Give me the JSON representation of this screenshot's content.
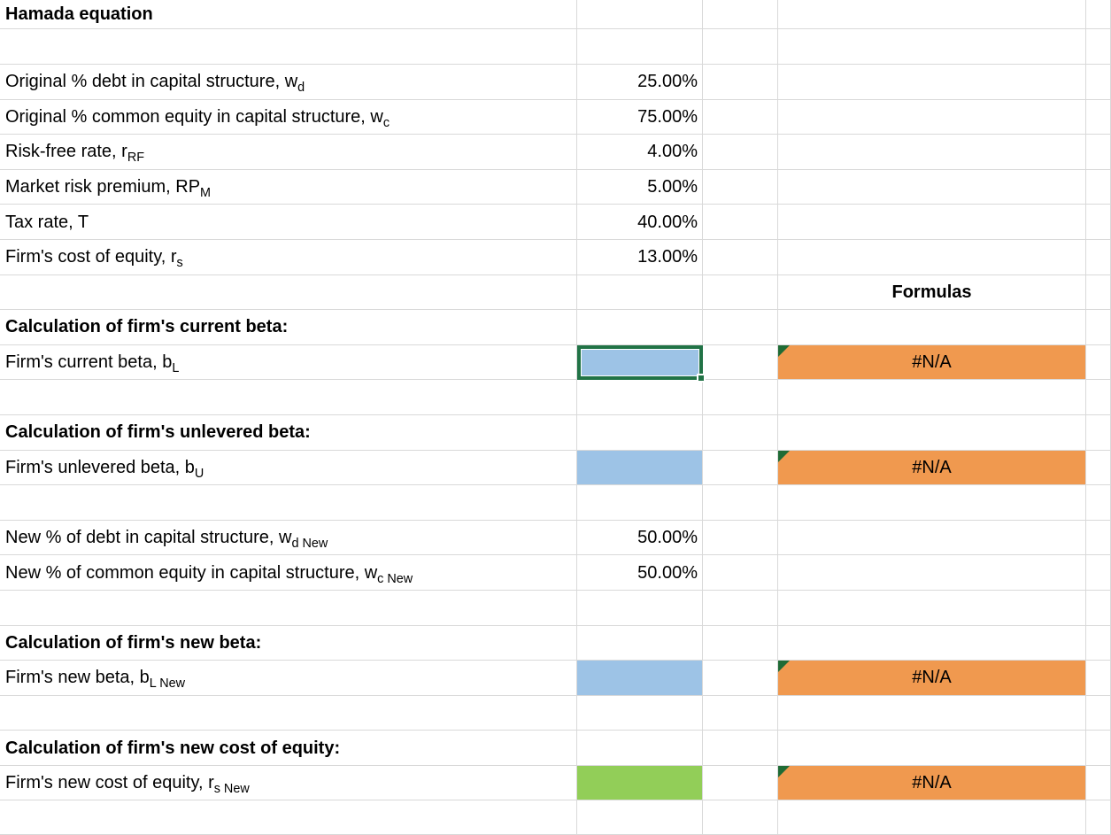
{
  "sheet_title": "Hamada equation",
  "rows": {
    "title": "Hamada equation",
    "original_debt": {
      "label": "Original % debt in capital structure, w",
      "sub": "d",
      "value": "25.00%"
    },
    "original_equity": {
      "label": "Original % common equity in capital structure, w",
      "sub": "c",
      "value": "75.00%"
    },
    "risk_free": {
      "label": "Risk-free rate, r",
      "sub": "RF",
      "value": "4.00%"
    },
    "market_premium": {
      "label": "Market risk premium, RP",
      "sub": "M",
      "value": "5.00%"
    },
    "tax_rate": {
      "label": "Tax rate, T",
      "sub": "",
      "value": "40.00%"
    },
    "cost_equity": {
      "label": "Firm's cost of equity, r",
      "sub": "s",
      "value": "13.00%"
    },
    "formulas_header": "Formulas",
    "section_current": "Calculation of firm's current beta:",
    "current_beta": {
      "label": "Firm's current beta, b",
      "sub": "L",
      "formula_result": "#N/A"
    },
    "section_unlevered": "Calculation of firm's unlevered beta:",
    "unlevered_beta": {
      "label": "Firm's unlevered beta, b",
      "sub": "U",
      "formula_result": "#N/A"
    },
    "new_debt": {
      "label": "New % of debt in capital structure, w",
      "sub": "d New",
      "value": "50.00%"
    },
    "new_equity": {
      "label": "New % of common equity in capital structure, w",
      "sub": "c New",
      "value": "50.00%"
    },
    "section_new_beta": "Calculation of firm's new beta:",
    "new_beta": {
      "label": "Firm's new beta, b",
      "sub": "L New",
      "formula_result": "#N/A"
    },
    "section_new_cost": "Calculation of firm's new cost of equity:",
    "new_cost": {
      "label": "Firm's new cost of equity, r",
      "sub": "s New",
      "formula_result": "#N/A"
    }
  },
  "colors": {
    "input_fill": "#9DC3E6",
    "result_fill": "#92CE58",
    "formula_fill": "#F0994F",
    "selection_border": "#217346",
    "flag_triangle": "#1F6B35",
    "gridline": "#D9D9D9"
  }
}
